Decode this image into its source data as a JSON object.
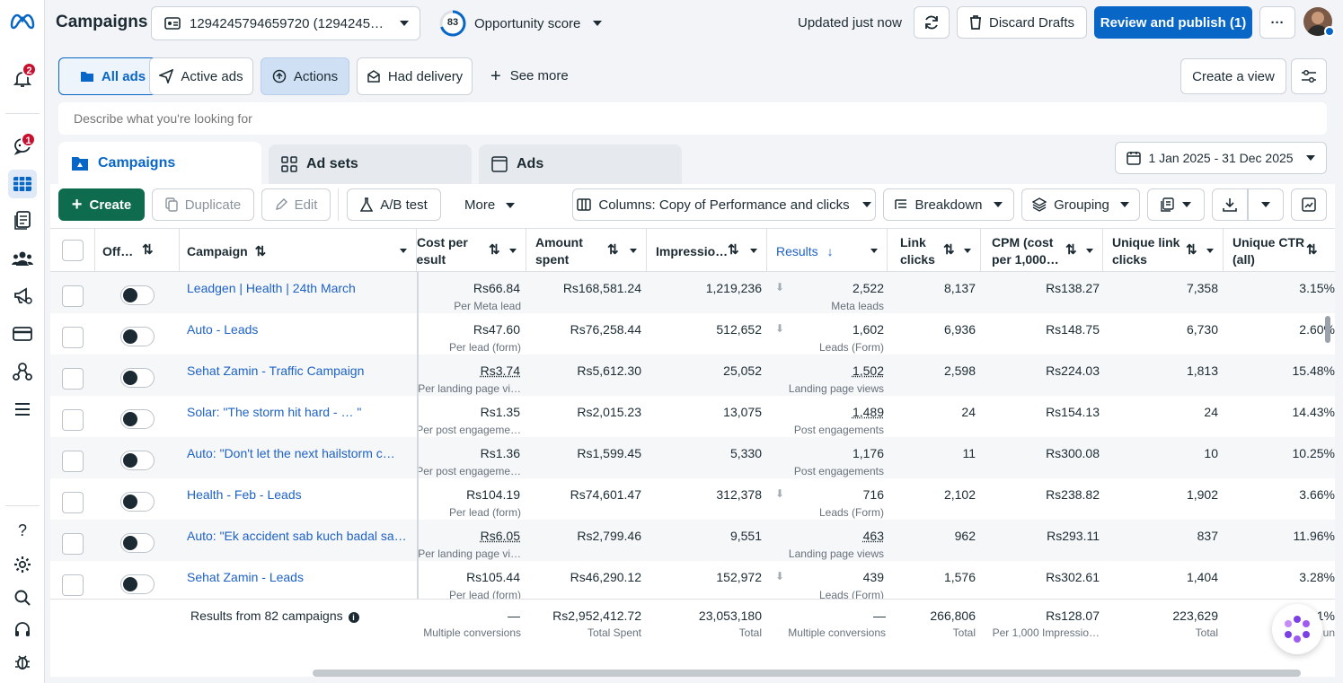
{
  "header": {
    "title": "Campaigns",
    "account_select": "1294245794659720 (1294245…",
    "opportunity_score": "83",
    "opportunity_label": "Opportunity score",
    "updated": "Updated just now",
    "discard": "Discard Drafts",
    "review": "Review and publish (1)",
    "more": "···"
  },
  "rail": {
    "notifications_badge": "2",
    "messages_badge": "1",
    "help": "?"
  },
  "filters": {
    "all_ads": "All ads",
    "active_ads": "Active ads",
    "actions": "Actions",
    "had_delivery": "Had delivery",
    "see_more": "See more",
    "create_view": "Create a view"
  },
  "search": {
    "placeholder": "Describe what you're looking for"
  },
  "tabs": {
    "campaigns": "Campaigns",
    "ad_sets": "Ad sets",
    "ads": "Ads"
  },
  "date_range": "1 Jan 2025 - 31 Dec 2025",
  "toolbar": {
    "create": "Create",
    "duplicate": "Duplicate",
    "edit": "Edit",
    "ab_test": "A/B test",
    "more": "More",
    "columns": "Columns: Copy of Performance and clicks",
    "breakdown": "Breakdown",
    "grouping": "Grouping"
  },
  "columns": {
    "off": "Off…",
    "campaign": "Campaign",
    "cost_per_result_1": "Cost per",
    "cost_per_result_2": "result",
    "amount_spent_1": "Amount",
    "amount_spent_2": "spent",
    "impressions": "Impressio…",
    "results": "Results",
    "link_clicks_1": "Link",
    "link_clicks_2": "clicks",
    "cpm_1": "CPM (cost",
    "cpm_2": "per 1,000…",
    "unique_link_clicks_1": "Unique link",
    "unique_link_clicks_2": "clicks",
    "unique_ctr_1": "Unique CTR",
    "unique_ctr_2": "(all)"
  },
  "rows": [
    {
      "name": "Leadgen | Health | 24th March",
      "cost": "Rs66.84",
      "cost_sub": "Per Meta lead",
      "spent": "Rs168,581.24",
      "impr": "1,219,236",
      "results": "2,522",
      "results_sub": "Meta leads",
      "clicks": "8,137",
      "cpm": "Rs138.27",
      "ulc": "7,358",
      "uctr": "3.15%"
    },
    {
      "name": "Auto - Leads",
      "cost": "Rs47.60",
      "cost_sub": "Per lead (form)",
      "spent": "Rs76,258.44",
      "impr": "512,652",
      "results": "1,602",
      "results_sub": "Leads (Form)",
      "clicks": "6,936",
      "cpm": "Rs148.75",
      "ulc": "6,730",
      "uctr": "2.60%"
    },
    {
      "name": "Sehat Zamin - Traffic Campaign",
      "cost": "Rs3.74",
      "cost_sub": "Per landing page vi…",
      "spent": "Rs5,612.30",
      "impr": "25,052",
      "results": "1,502",
      "results_sub": "Landing page views",
      "clicks": "2,598",
      "cpm": "Rs224.03",
      "ulc": "1,813",
      "uctr": "15.48%"
    },
    {
      "name": "Solar: \"The storm hit hard - … \"",
      "cost": "Rs1.35",
      "cost_sub": "Per post engageme…",
      "spent": "Rs2,015.23",
      "impr": "13,075",
      "results": "1,489",
      "results_sub": "Post engagements",
      "clicks": "24",
      "cpm": "Rs154.13",
      "ulc": "24",
      "uctr": "14.43%"
    },
    {
      "name": "Auto: \"Don't let the next hailstorm c…",
      "cost": "Rs1.36",
      "cost_sub": "Per post engageme…",
      "spent": "Rs1,599.45",
      "impr": "5,330",
      "results": "1,176",
      "results_sub": "Post engagements",
      "clicks": "11",
      "cpm": "Rs300.08",
      "ulc": "10",
      "uctr": "10.25%"
    },
    {
      "name": "Health - Feb - Leads",
      "cost": "Rs104.19",
      "cost_sub": "Per lead (form)",
      "spent": "Rs74,601.47",
      "impr": "312,378",
      "results": "716",
      "results_sub": "Leads (Form)",
      "clicks": "2,102",
      "cpm": "Rs238.82",
      "ulc": "1,902",
      "uctr": "3.66%"
    },
    {
      "name": "Auto: \"Ek accident sab kuch badal sa…",
      "cost": "Rs6.05",
      "cost_sub": "Per landing page vi…",
      "spent": "Rs2,799.46",
      "impr": "9,551",
      "results": "463",
      "results_sub": "Landing page views",
      "clicks": "962",
      "cpm": "Rs293.11",
      "ulc": "837",
      "uctr": "11.96%"
    },
    {
      "name": "Sehat Zamin - Leads",
      "cost": "Rs105.44",
      "cost_sub": "Per lead (form)",
      "spent": "Rs46,290.12",
      "impr": "152,972",
      "results": "439",
      "results_sub": "Leads (Form)",
      "clicks": "1,576",
      "cpm": "Rs302.61",
      "ulc": "1,404",
      "uctr": "3.28%"
    }
  ],
  "totals": {
    "label": "Results from 82 campaigns",
    "cost": "—",
    "cost_sub": "Multiple conversions",
    "spent": "Rs2,952,412.72",
    "spent_sub": "Total Spent",
    "impr": "23,053,180",
    "impr_sub": "Total",
    "results": "—",
    "results_sub": "Multiple conversions",
    "clicks": "266,806",
    "clicks_sub": "Total",
    "cpm": "Rs128.07",
    "cpm_sub": "Per 1,000 Impressio…",
    "ulc": "223,629",
    "ulc_sub": "Total",
    "uctr": "…81%",
    "uctr_sub": "Per …un"
  },
  "colors": {
    "brand": "#0866c6",
    "green": "#0f6b4d",
    "link": "#1d62c4",
    "badge": "#c8102e"
  }
}
